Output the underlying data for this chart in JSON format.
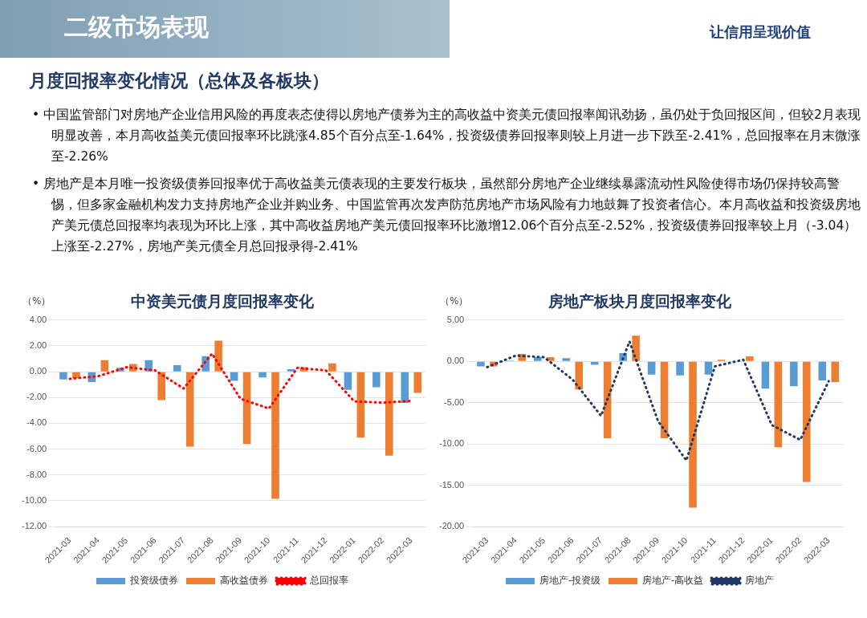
{
  "chart_data": [
    {
      "type": "other",
      "title": "二级市场表现",
      "subtitle": "月度回报率变化情况（总体及各板块）",
      "annotations": [
        "让信用呈现价值",
        "• 中国监管部门对房地产企业信用风险的再度表态使得以房地产债券为主的高收益中资美元债回报率闻讯劲扬，虽仍处于负回报区间，但较2月表现明显改善，本月高收益美元债回报率环比跳涨4.85个百分点至-1.64%，投资级债券回报率则较上月进一步下跌至-2.41%，总回报率在月末微涨至-2.26%",
        "• 房地产是本月唯一投资级债券回报率优于高收益美元债表现的主要发行板块，虽然部分房地产企业继续暴露流动性风险使得市场仍保持较高警惕，但多家金融机构发力支持房地产企业并购业务、中国监管再次发声防范房地产市场风险有力地鼓舞了投资者信心。本月高收益和投资级房地产美元债总回报率均表现为环比上涨，其中高收益房地产美元债回报率环比激增12.06个百分点至-2.52%，投资级债券回报率较上月（-3.04）上涨至-2.27%，房地产美元债全月总回报录得-2.41%"
      ]
    },
    {
      "type": "bar",
      "title": "中资美元债月度回报率变化",
      "ylabel": "（%）",
      "categories": [
        "2021-03",
        "2021-04",
        "2021-05",
        "2021-06",
        "2021-07",
        "2021-08",
        "2021-09",
        "2021-10",
        "2021-11",
        "2021-12",
        "2022-01",
        "2022-02",
        "2022-03"
      ],
      "series": [
        {
          "name": "投资级债券",
          "color": "#5b9bd5",
          "values": [
            -0.6,
            -0.8,
            0.3,
            0.9,
            0.5,
            1.2,
            -0.7,
            -0.45,
            0.2,
            null,
            -1.4,
            -1.2,
            -2.41
          ]
        },
        {
          "name": "高收益债券",
          "color": "#ed7d31",
          "values": [
            -0.5,
            0.9,
            0.6,
            -2.2,
            -5.8,
            2.4,
            -5.6,
            -9.85,
            0.35,
            0.65,
            -5.1,
            -6.5,
            -1.64
          ]
        },
        {
          "name": "总回报率",
          "type": "line",
          "line_style": "dotted",
          "marker": "none",
          "color": "#ff0000",
          "values": [
            -0.55,
            -0.35,
            0.35,
            0.1,
            -1.3,
            1.4,
            -2.1,
            -2.85,
            0.3,
            0.1,
            -2.3,
            -2.4,
            -2.26
          ]
        }
      ],
      "ylim": [
        -12,
        4
      ],
      "yticks": [
        {
          "value": 4,
          "label": "4.00"
        },
        {
          "value": 2,
          "label": "2.00"
        },
        {
          "value": 0,
          "label": "0.00"
        },
        {
          "value": -2,
          "label": "-2.00"
        },
        {
          "value": -4,
          "label": "-4.00"
        },
        {
          "value": -6,
          "label": "-6.00"
        },
        {
          "value": -8,
          "label": "-8.00"
        },
        {
          "value": -10,
          "label": "-10.00"
        },
        {
          "value": -12,
          "label": "-12.00"
        }
      ],
      "grid": "y",
      "legend": "bottom"
    },
    {
      "type": "bar",
      "title": "房地产板块月度回报率变化",
      "ylabel": "（%）",
      "categories": [
        "2021-03",
        "2021-04",
        "2021-05",
        "2021-06",
        "2021-07",
        "2021-08",
        "2021-09",
        "2021-10",
        "2021-11",
        "2021-12",
        "2022-01",
        "2022-02",
        "2022-03"
      ],
      "series": [
        {
          "name": "房地产-投资级",
          "color": "#5b9bd5",
          "values": [
            -0.6,
            0.1,
            0.5,
            0.4,
            -0.4,
            1.0,
            -1.6,
            -1.7,
            -1.6,
            null,
            -3.3,
            -3.0,
            -2.3
          ]
        },
        {
          "name": "房地产-高收益",
          "color": "#ed7d31",
          "values": [
            -0.6,
            0.9,
            0.5,
            -3.4,
            -9.3,
            3.1,
            -9.3,
            -17.7,
            0.2,
            0.6,
            -10.4,
            -14.6,
            -2.5
          ]
        },
        {
          "name": "房地产",
          "type": "line",
          "line_style": "dotted",
          "marker": "none",
          "color": "#1f3864",
          "values": [
            -0.7,
            0.7,
            0.5,
            -2.2,
            -6.6,
            2.4,
            -7.2,
            -12.0,
            -0.6,
            0.2,
            -7.7,
            -9.5,
            -2.4
          ]
        }
      ],
      "ylim": [
        -20,
        5
      ],
      "yticks": [
        {
          "value": 5,
          "label": "5.00"
        },
        {
          "value": 0,
          "label": "0.00"
        },
        {
          "value": -5,
          "label": "-5.00"
        },
        {
          "value": -10,
          "label": "-10.00"
        },
        {
          "value": -15,
          "label": "-15.00"
        },
        {
          "value": -20,
          "label": "-20.00"
        }
      ],
      "grid": "y",
      "legend": "bottom"
    }
  ]
}
